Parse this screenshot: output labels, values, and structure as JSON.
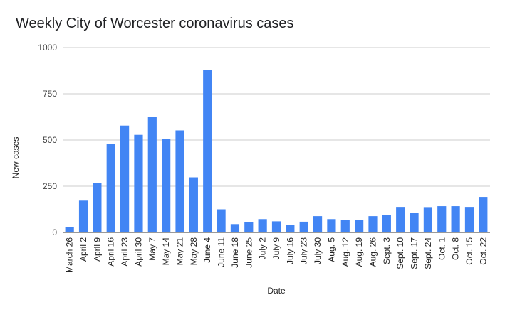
{
  "chart_data": {
    "type": "bar",
    "title": "Weekly City of Worcester coronavirus cases",
    "xlabel": "Date",
    "ylabel": "New cases",
    "ylim": [
      0,
      1000
    ],
    "yticks": [
      0,
      250,
      500,
      750,
      1000
    ],
    "grid": true,
    "bar_color": "#4285f4",
    "categories": [
      "March 26",
      "April 2",
      "April 9",
      "April 16",
      "April 23",
      "April 30",
      "May 7",
      "May 14",
      "May 21",
      "May 28",
      "June 4",
      "June 11",
      "June 18",
      "June 25",
      "July 2",
      "July 9",
      "July 16",
      "July 23",
      "July 30",
      "Aug. 5",
      "Aug. 12",
      "Aug. 19",
      "Aug. 26",
      "Sept. 3",
      "Sept. 10",
      "Sept. 17",
      "Sept. 24",
      "Oct. 1",
      "Oct. 8",
      "Oct. 15",
      "Oct. 22"
    ],
    "values": [
      30,
      172,
      267,
      478,
      578,
      528,
      625,
      505,
      552,
      298,
      878,
      125,
      45,
      55,
      72,
      60,
      40,
      58,
      88,
      72,
      68,
      68,
      88,
      95,
      138,
      107,
      137,
      142,
      142,
      138,
      192
    ]
  }
}
